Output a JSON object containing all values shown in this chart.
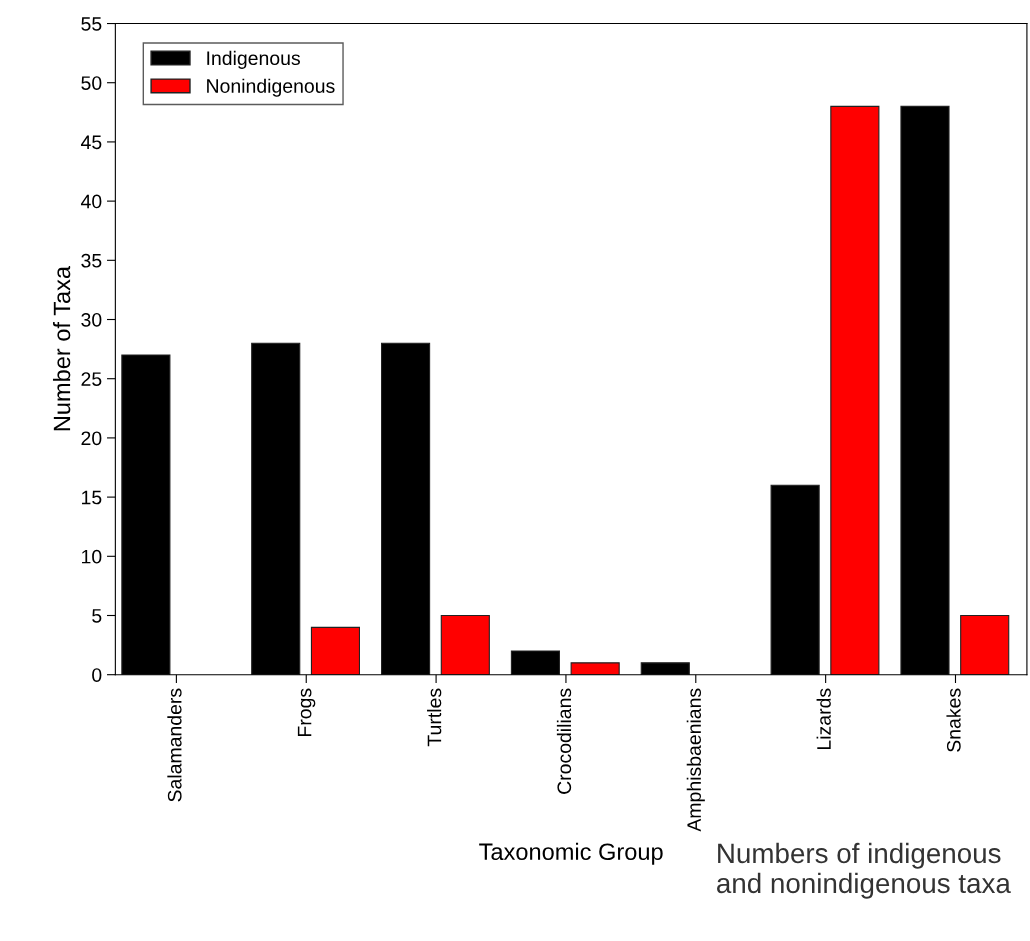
{
  "chart_data": {
    "type": "bar",
    "categories": [
      "Salamanders",
      "Frogs",
      "Turtles",
      "Crocodilians",
      "Amphisbaenians",
      "Lizards",
      "Snakes"
    ],
    "series": [
      {
        "name": "Indigenous",
        "color": "#000000",
        "values": [
          27,
          28,
          28,
          2,
          1,
          16,
          48
        ]
      },
      {
        "name": "Nonindigenous",
        "color": "#ff0000",
        "values": [
          null,
          4,
          5,
          1,
          null,
          48,
          5
        ]
      }
    ],
    "xlabel": "Taxonomic Group",
    "ylabel": "Number of Taxa",
    "ylim": [
      0,
      55
    ],
    "yticks": [
      0,
      5,
      10,
      15,
      20,
      25,
      30,
      35,
      40,
      45,
      50,
      55
    ],
    "legend": "top left",
    "grid": false,
    "annotations": [
      "Numbers of indigenous and nonindigenous taxa"
    ]
  }
}
